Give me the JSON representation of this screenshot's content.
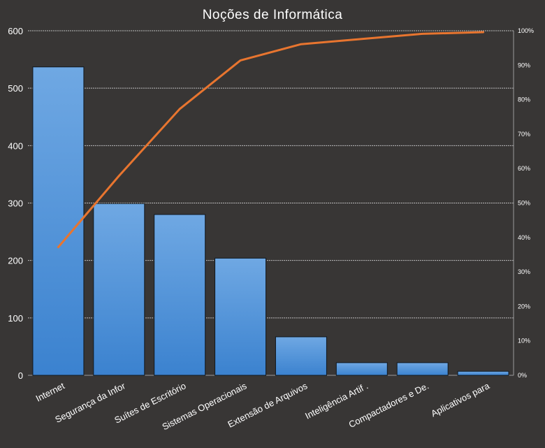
{
  "chart_data": {
    "type": "bar",
    "title": "Noções de Informática",
    "categories": [
      "Internet",
      "Segurança da Infor",
      "Suítes de Escritório",
      "Sistemas Operacionais",
      "Extensão de Arquivos",
      "Inteligência Artif .",
      "Compactadores e De.",
      "Aplicativos para"
    ],
    "series": [
      {
        "type": "bar",
        "values": [
          537,
          299,
          280,
          204,
          67,
          22,
          22,
          7
        ],
        "color": "#4a8fd6"
      },
      {
        "type": "line",
        "axis": "right",
        "values": [
          37.2,
          57.9,
          77.3,
          91.4,
          96.1,
          97.6,
          99.1,
          99.6
        ],
        "color": "#e8752f"
      }
    ],
    "ylim": [
      0,
      600
    ],
    "yticks": [
      "0",
      "100",
      "200",
      "300",
      "400",
      "500",
      "600"
    ],
    "y2lim": [
      0,
      100
    ],
    "y2ticks": [
      "0%",
      "10%",
      "20%",
      "30%",
      "40%",
      "50%",
      "60%",
      "70%",
      "80%",
      "90%",
      "100%"
    ],
    "grid": true,
    "colors": {
      "background": "#383635",
      "bar": "#4a8fd6",
      "line": "#e8752f",
      "text": "#ffffff"
    }
  }
}
